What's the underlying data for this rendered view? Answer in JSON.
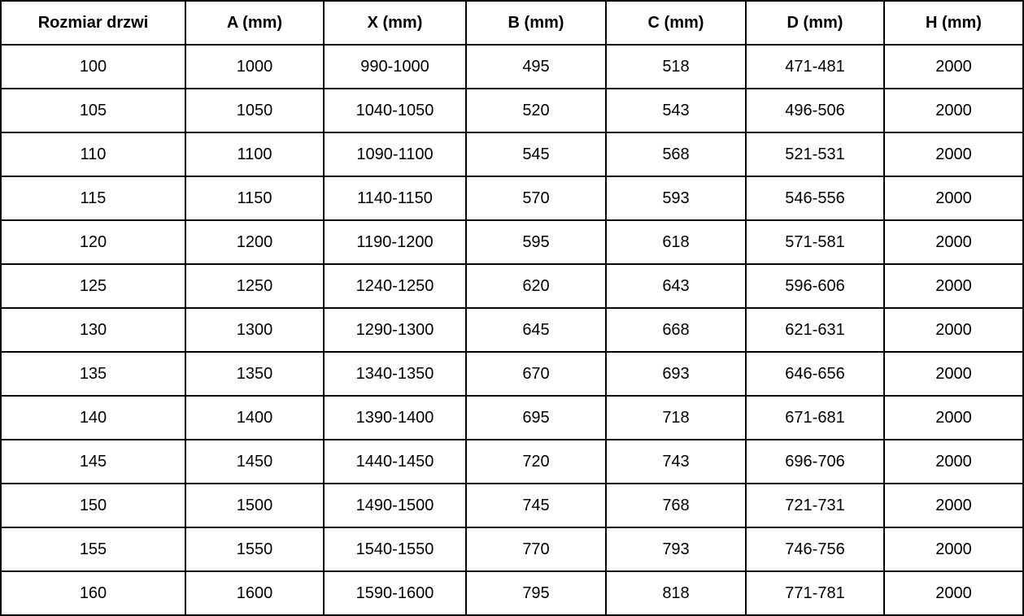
{
  "colors": {
    "border": "#000000",
    "background": "#ffffff",
    "text": "#000000"
  },
  "table": {
    "headers": [
      "Rozmiar drzwi",
      "A (mm)",
      "X (mm)",
      "B (mm)",
      "C (mm)",
      "D (mm)",
      "H (mm)"
    ],
    "rows": [
      [
        "100",
        "1000",
        "990-1000",
        "495",
        "518",
        "471-481",
        "2000"
      ],
      [
        "105",
        "1050",
        "1040-1050",
        "520",
        "543",
        "496-506",
        "2000"
      ],
      [
        "110",
        "1100",
        "1090-1100",
        "545",
        "568",
        "521-531",
        "2000"
      ],
      [
        "115",
        "1150",
        "1140-1150",
        "570",
        "593",
        "546-556",
        "2000"
      ],
      [
        "120",
        "1200",
        "1190-1200",
        "595",
        "618",
        "571-581",
        "2000"
      ],
      [
        "125",
        "1250",
        "1240-1250",
        "620",
        "643",
        "596-606",
        "2000"
      ],
      [
        "130",
        "1300",
        "1290-1300",
        "645",
        "668",
        "621-631",
        "2000"
      ],
      [
        "135",
        "1350",
        "1340-1350",
        "670",
        "693",
        "646-656",
        "2000"
      ],
      [
        "140",
        "1400",
        "1390-1400",
        "695",
        "718",
        "671-681",
        "2000"
      ],
      [
        "145",
        "1450",
        "1440-1450",
        "720",
        "743",
        "696-706",
        "2000"
      ],
      [
        "150",
        "1500",
        "1490-1500",
        "745",
        "768",
        "721-731",
        "2000"
      ],
      [
        "155",
        "1550",
        "1540-1550",
        "770",
        "793",
        "746-756",
        "2000"
      ],
      [
        "160",
        "1600",
        "1590-1600",
        "795",
        "818",
        "771-781",
        "2000"
      ]
    ]
  },
  "chart_data": {
    "type": "table",
    "title": "",
    "columns": [
      "Rozmiar drzwi",
      "A (mm)",
      "X (mm)",
      "B (mm)",
      "C (mm)",
      "D (mm)",
      "H (mm)"
    ],
    "rows": [
      [
        "100",
        "1000",
        "990-1000",
        "495",
        "518",
        "471-481",
        "2000"
      ],
      [
        "105",
        "1050",
        "1040-1050",
        "520",
        "543",
        "496-506",
        "2000"
      ],
      [
        "110",
        "1100",
        "1090-1100",
        "545",
        "568",
        "521-531",
        "2000"
      ],
      [
        "115",
        "1150",
        "1140-1150",
        "570",
        "593",
        "546-556",
        "2000"
      ],
      [
        "120",
        "1200",
        "1190-1200",
        "595",
        "618",
        "571-581",
        "2000"
      ],
      [
        "125",
        "1250",
        "1240-1250",
        "620",
        "643",
        "596-606",
        "2000"
      ],
      [
        "130",
        "1300",
        "1290-1300",
        "645",
        "668",
        "621-631",
        "2000"
      ],
      [
        "135",
        "1350",
        "1340-1350",
        "670",
        "693",
        "646-656",
        "2000"
      ],
      [
        "140",
        "1400",
        "1390-1400",
        "695",
        "718",
        "671-681",
        "2000"
      ],
      [
        "145",
        "1450",
        "1440-1450",
        "720",
        "743",
        "696-706",
        "2000"
      ],
      [
        "150",
        "1500",
        "1490-1500",
        "745",
        "768",
        "721-731",
        "2000"
      ],
      [
        "155",
        "1550",
        "1540-1550",
        "770",
        "793",
        "746-756",
        "2000"
      ],
      [
        "160",
        "1600",
        "1590-1600",
        "795",
        "818",
        "771-781",
        "2000"
      ]
    ]
  }
}
